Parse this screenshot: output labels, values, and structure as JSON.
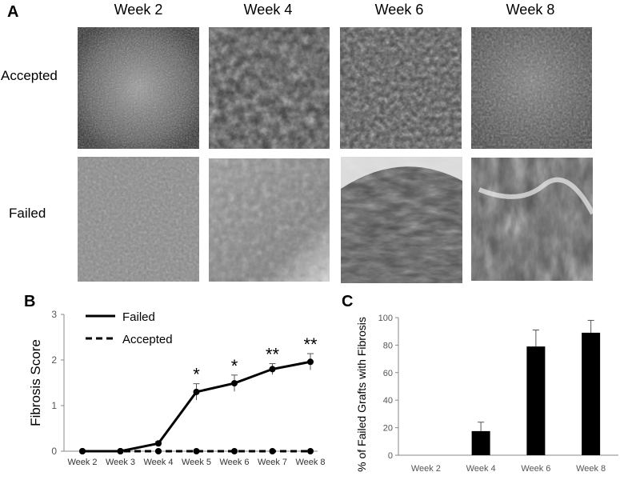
{
  "panelA": {
    "letter": "A",
    "columns": [
      "Week 2",
      "Week 4",
      "Week 6",
      "Week 8"
    ],
    "rows": [
      "Accepted",
      "Failed"
    ]
  },
  "panelB": {
    "letter": "B"
  },
  "panelC": {
    "letter": "C"
  },
  "chart_data": [
    {
      "type": "line",
      "ylabel": "Fibrosis Score",
      "categories": [
        "Week 2",
        "Week 3",
        "Week 4",
        "Week 5",
        "Week 6",
        "Week 7",
        "Week 8"
      ],
      "ylim": [
        0,
        3
      ],
      "yticks": [
        0,
        1,
        2,
        3
      ],
      "legend_position": "top-left",
      "series": [
        {
          "name": "Failed",
          "style": "solid",
          "values": [
            0,
            0,
            0.17,
            1.3,
            1.49,
            1.8,
            1.96
          ],
          "error": [
            0,
            0,
            0.04,
            0.18,
            0.18,
            0.12,
            0.18
          ]
        },
        {
          "name": "Accepted",
          "style": "dashed",
          "values": [
            0,
            0,
            0,
            0,
            0,
            0,
            0
          ]
        }
      ],
      "annotations": [
        {
          "category": "Week 5",
          "text": "*"
        },
        {
          "category": "Week 6",
          "text": "*"
        },
        {
          "category": "Week 7",
          "text": "**"
        },
        {
          "category": "Week 8",
          "text": "**"
        }
      ],
      "color": "#000000"
    },
    {
      "type": "bar",
      "ylabel": "% of Failed Grafts with Fibrosis",
      "categories": [
        "Week 2",
        "Week 4",
        "Week 6",
        "Week 8"
      ],
      "values": [
        0,
        17.5,
        79,
        89
      ],
      "error": [
        0,
        6.5,
        12,
        9
      ],
      "ylim": [
        0,
        100
      ],
      "yticks": [
        0,
        20,
        40,
        60,
        80,
        100
      ],
      "color": "#000000"
    }
  ]
}
